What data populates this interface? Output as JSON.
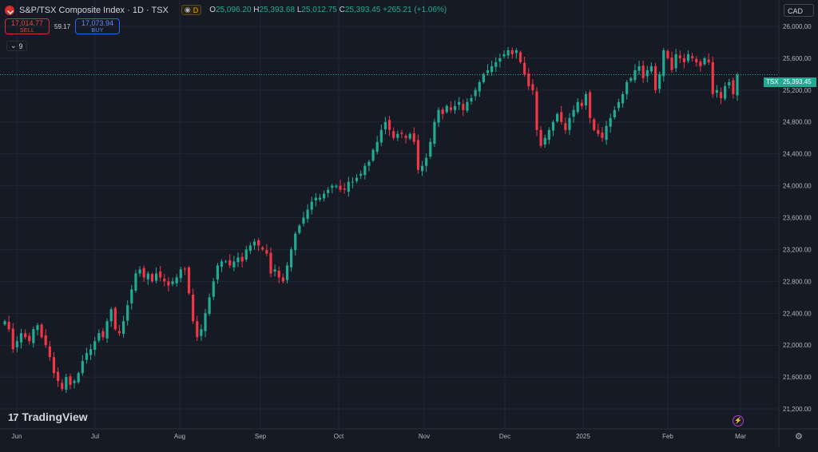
{
  "header": {
    "title": "S&P/TSX Composite Index · 1D · TSX",
    "badge": "D",
    "ohlc": {
      "o_label": "O",
      "o": "25,096.20",
      "h_label": "H",
      "h": "25,393.68",
      "l_label": "L",
      "l": "25,012.75",
      "c_label": "C",
      "c": "25,393.45",
      "change": "+265.21 (+1.06%)"
    }
  },
  "trade": {
    "sell_price": "17,014.77",
    "sell_label": "SELL",
    "spread": "59.17",
    "buy_price": "17,073.94",
    "buy_label": "BUY"
  },
  "indicators_toggle": "9",
  "currency": "CAD",
  "last_price": {
    "symbol": "TSX",
    "value": "25,393.45"
  },
  "brand": "TradingView",
  "colors": {
    "up": "#22ab94",
    "down": "#f23645",
    "bg": "#161a25",
    "grid": "#232733",
    "text": "#b2b5be"
  },
  "chart_data": {
    "type": "candlestick",
    "title": "S&P/TSX Composite Index · 1D · TSX",
    "x_tick_labels": [
      "Jun",
      "Jul",
      "Aug",
      "Sep",
      "Oct",
      "Nov",
      "Dec",
      "2025",
      "Feb",
      "Mar"
    ],
    "y_tick_labels": [
      "21,200.00",
      "21,600.00",
      "22,000.00",
      "22,400.00",
      "22,800.00",
      "23,200.00",
      "23,600.00",
      "24,000.00",
      "24,400.00",
      "24,800.00",
      "25,200.00",
      "25,600.00",
      "26,000.00"
    ],
    "ylim": [
      21000,
      26150
    ],
    "y_ticks": [
      21200,
      21600,
      22000,
      22400,
      22800,
      23200,
      23600,
      24000,
      24400,
      24800,
      25200,
      25600,
      26000
    ],
    "last_close": 25393.45,
    "closes": [
      22300,
      22200,
      21950,
      22050,
      22150,
      22100,
      22050,
      22200,
      22250,
      22100,
      22000,
      21850,
      21650,
      21550,
      21450,
      21600,
      21500,
      21550,
      21650,
      21800,
      21900,
      21950,
      22050,
      22150,
      22100,
      22300,
      22450,
      22200,
      22150,
      22300,
      22500,
      22700,
      22900,
      22950,
      22850,
      22900,
      22800,
      22900,
      22850,
      22800,
      22750,
      22800,
      22850,
      22950,
      22950,
      22650,
      22300,
      22100,
      22200,
      22400,
      22600,
      22800,
      23000,
      23050,
      23050,
      23000,
      23050,
      23100,
      23050,
      23200,
      23250,
      23300,
      23250,
      23200,
      23150,
      22900,
      22950,
      22850,
      22800,
      23000,
      23200,
      23400,
      23500,
      23600,
      23700,
      23800,
      23850,
      23850,
      23900,
      23950,
      24000,
      24000,
      23950,
      23950,
      24050,
      24050,
      24100,
      24150,
      24250,
      24300,
      24450,
      24550,
      24700,
      24800,
      24700,
      24600,
      24650,
      24650,
      24600,
      24650,
      24550,
      24200,
      24250,
      24350,
      24550,
      24800,
      24950,
      24900,
      25000,
      24950,
      25000,
      25050,
      24950,
      25050,
      25100,
      25200,
      25300,
      25400,
      25450,
      25500,
      25550,
      25600,
      25650,
      25700,
      25650,
      25700,
      25550,
      25400,
      25250,
      25200,
      24700,
      24500,
      24600,
      24700,
      24800,
      24900,
      24800,
      24700,
      24850,
      24950,
      25050,
      25000,
      25150,
      24850,
      24700,
      24650,
      24600,
      24750,
      24850,
      24950,
      25050,
      25150,
      25300,
      25350,
      25450,
      25500,
      25350,
      25450,
      25500,
      25200,
      25400,
      25700,
      25600,
      25450,
      25650,
      25600,
      25550,
      25650,
      25600,
      25550,
      25500,
      25600,
      25550,
      25150,
      25200,
      25100,
      25250,
      25300,
      25150,
      25393
    ]
  }
}
